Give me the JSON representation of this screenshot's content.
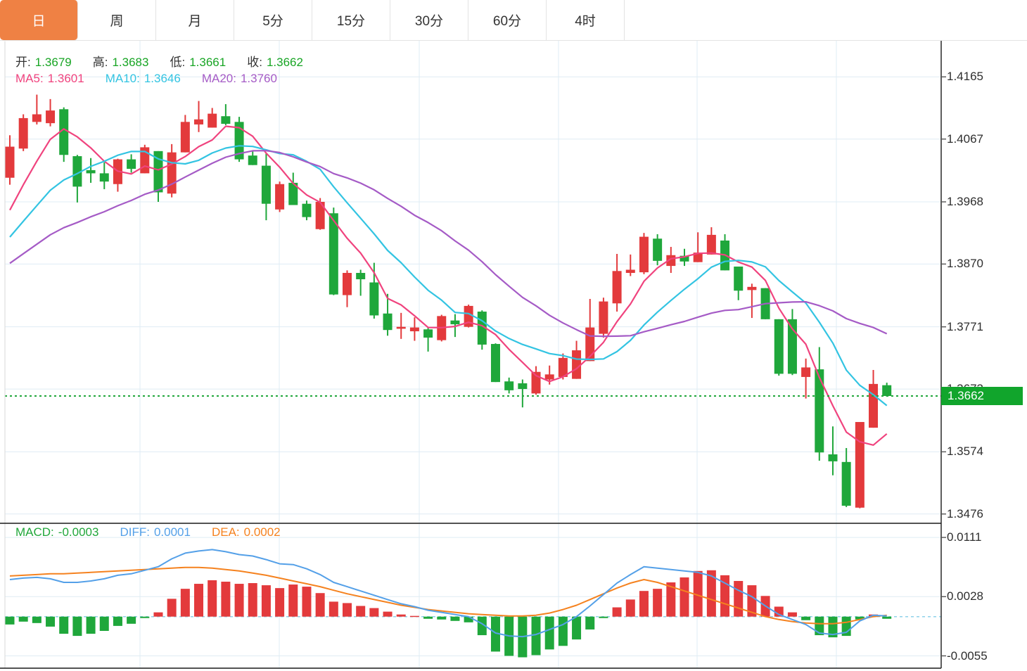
{
  "tabs": {
    "items": [
      {
        "label": "日",
        "name": "tab-day",
        "active": true
      },
      {
        "label": "周",
        "name": "tab-week",
        "active": false
      },
      {
        "label": "月",
        "name": "tab-month",
        "active": false
      },
      {
        "label": "5分",
        "name": "tab-5min",
        "active": false
      },
      {
        "label": "15分",
        "name": "tab-15min",
        "active": false
      },
      {
        "label": "30分",
        "name": "tab-30min",
        "active": false
      },
      {
        "label": "60分",
        "name": "tab-60min",
        "active": false
      },
      {
        "label": "4时",
        "name": "tab-4hour",
        "active": false
      }
    ],
    "active_color": "#ef8144"
  },
  "price_panel": {
    "ohlc_readout": [
      {
        "label": "开:",
        "value": "1.3679",
        "label_color": "#333333",
        "value_color": "#18a524"
      },
      {
        "label": "高:",
        "value": "1.3683",
        "label_color": "#333333",
        "value_color": "#18a524"
      },
      {
        "label": "低:",
        "value": "1.3661",
        "label_color": "#333333",
        "value_color": "#18a524"
      },
      {
        "label": "收:",
        "value": "1.3662",
        "label_color": "#333333",
        "value_color": "#18a524"
      }
    ],
    "ma_readout": [
      {
        "label": "MA5:",
        "value": "1.3601",
        "label_color": "#f0437e",
        "value_color": "#f0437e"
      },
      {
        "label": "MA10:",
        "value": "1.3646",
        "label_color": "#33c4e2",
        "value_color": "#33c4e2"
      },
      {
        "label": "MA20:",
        "value": "1.3760",
        "label_color": "#a55bc6",
        "value_color": "#a55bc6"
      }
    ],
    "current_price": {
      "value": "1.3662",
      "badge_color": "#11a52c",
      "line_color": "#21a73b"
    }
  },
  "macd_panel": {
    "readout": [
      {
        "label": "MACD:",
        "value": "-0.0003",
        "label_color": "#21a73b",
        "value_color": "#21a73b"
      },
      {
        "label": "DIFF:",
        "value": "0.0001",
        "label_color": "#54a0e8",
        "value_color": "#54a0e8"
      },
      {
        "label": "DEA:",
        "value": "0.0002",
        "label_color": "#f5821f",
        "value_color": "#f5821f"
      }
    ]
  },
  "chart_data": {
    "type": "candlestick+macd",
    "title": "",
    "price_axis_ticks": [
      1.4165,
      1.4067,
      1.3968,
      1.387,
      1.3771,
      1.3673,
      1.3574,
      1.3476
    ],
    "price_axis_visible_range": [
      1.3461,
      1.4222
    ],
    "macd_axis_ticks": [
      0.0111,
      0.0028,
      -0.0055
    ],
    "macd_axis_visible_range": [
      -0.0072,
      0.0131
    ],
    "current_price": 1.3662,
    "grid": true,
    "legend_position": "top-left",
    "candles_ohlc": [
      [
        1.4006,
        1.4073,
        1.3995,
        1.4055
      ],
      [
        1.4052,
        1.4106,
        1.4048,
        1.41
      ],
      [
        1.4094,
        1.4137,
        1.409,
        1.4106
      ],
      [
        1.4092,
        1.413,
        1.4087,
        1.4112
      ],
      [
        1.4114,
        1.4117,
        1.4031,
        1.4042
      ],
      [
        1.404,
        1.4042,
        1.3967,
        1.3992
      ],
      [
        1.4018,
        1.4037,
        1.3998,
        1.4013
      ],
      [
        1.4013,
        1.403,
        1.3988,
        1.4
      ],
      [
        1.3996,
        1.4036,
        1.3984,
        1.4035
      ],
      [
        1.4035,
        1.4043,
        1.4014,
        1.402
      ],
      [
        1.4013,
        1.4058,
        1.4013,
        1.4054
      ],
      [
        1.4048,
        1.4048,
        1.3968,
        1.3983
      ],
      [
        1.3981,
        1.4059,
        1.3975,
        1.4046
      ],
      [
        1.4046,
        1.4105,
        1.4046,
        1.4094
      ],
      [
        1.409,
        1.4127,
        1.4078,
        1.4098
      ],
      [
        1.4085,
        1.4116,
        1.4085,
        1.4107
      ],
      [
        1.4103,
        1.4122,
        1.4089,
        1.4091
      ],
      [
        1.4094,
        1.4102,
        1.4031,
        1.4035
      ],
      [
        1.4041,
        1.4049,
        1.4026,
        1.4026
      ],
      [
        1.4025,
        1.4044,
        1.3939,
        1.3965
      ],
      [
        1.3956,
        1.4,
        1.3952,
        1.3996
      ],
      [
        1.3998,
        1.4014,
        1.3963,
        1.3963
      ],
      [
        1.3965,
        1.397,
        1.3939,
        1.3944
      ],
      [
        1.3925,
        1.3974,
        1.3924,
        1.3968
      ],
      [
        1.395,
        1.3959,
        1.3821,
        1.3822
      ],
      [
        1.3821,
        1.386,
        1.3802,
        1.3856
      ],
      [
        1.3856,
        1.3861,
        1.382,
        1.3846
      ],
      [
        1.3841,
        1.3872,
        1.3784,
        1.3789
      ],
      [
        1.3792,
        1.3823,
        1.3757,
        1.3766
      ],
      [
        1.3768,
        1.3793,
        1.3752,
        1.3771
      ],
      [
        1.3764,
        1.3786,
        1.3749,
        1.377
      ],
      [
        1.3767,
        1.377,
        1.3732,
        1.3754
      ],
      [
        1.375,
        1.379,
        1.3748,
        1.3788
      ],
      [
        1.3781,
        1.3791,
        1.3755,
        1.3775
      ],
      [
        1.3771,
        1.3806,
        1.377,
        1.3804
      ],
      [
        1.3795,
        1.3797,
        1.3735,
        1.3743
      ],
      [
        1.3744,
        1.3745,
        1.3684,
        1.3684
      ],
      [
        1.3685,
        1.3691,
        1.3666,
        1.3671
      ],
      [
        1.3682,
        1.3688,
        1.3644,
        1.3673
      ],
      [
        1.3666,
        1.3709,
        1.3664,
        1.37
      ],
      [
        1.3688,
        1.371,
        1.368,
        1.3696
      ],
      [
        1.3692,
        1.3729,
        1.3688,
        1.3722
      ],
      [
        1.3689,
        1.3749,
        1.3689,
        1.3734
      ],
      [
        1.3717,
        1.3815,
        1.3717,
        1.377
      ],
      [
        1.376,
        1.3817,
        1.3754,
        1.3811
      ],
      [
        1.3808,
        1.3886,
        1.3795,
        1.3859
      ],
      [
        1.3856,
        1.3885,
        1.3851,
        1.3861
      ],
      [
        1.3857,
        1.3919,
        1.3854,
        1.3913
      ],
      [
        1.391,
        1.3917,
        1.3868,
        1.3875
      ],
      [
        1.3867,
        1.3897,
        1.3856,
        1.3884
      ],
      [
        1.3883,
        1.3894,
        1.3867,
        1.3874
      ],
      [
        1.3873,
        1.392,
        1.3873,
        1.3888
      ],
      [
        1.3885,
        1.3928,
        1.3885,
        1.3916
      ],
      [
        1.3907,
        1.3917,
        1.386,
        1.386
      ],
      [
        1.3866,
        1.3866,
        1.3813,
        1.3828
      ],
      [
        1.3829,
        1.3839,
        1.3785,
        1.3834
      ],
      [
        1.3832,
        1.3832,
        1.3783,
        1.3783
      ],
      [
        1.3783,
        1.3783,
        1.3694,
        1.3697
      ],
      [
        1.3783,
        1.3799,
        1.3695,
        1.3697
      ],
      [
        1.3692,
        1.3721,
        1.3658,
        1.3707
      ],
      [
        1.3704,
        1.3739,
        1.356,
        1.3573
      ],
      [
        1.357,
        1.3614,
        1.3537,
        1.3559
      ],
      [
        1.3558,
        1.358,
        1.3487,
        1.3489
      ],
      [
        1.3486,
        1.3621,
        1.3485,
        1.3621
      ],
      [
        1.3612,
        1.3703,
        1.3612,
        1.3681
      ],
      [
        1.3679,
        1.3683,
        1.3661,
        1.3662
      ]
    ],
    "ma_periods": [
      5,
      10,
      20
    ],
    "macd": {
      "histogram": [
        -0.0011,
        -0.0007,
        -0.0009,
        -0.0014,
        -0.0024,
        -0.0027,
        -0.0024,
        -0.002,
        -0.0013,
        -0.001,
        -0.0002,
        0.0006,
        0.0025,
        0.0039,
        0.0046,
        0.0051,
        0.0049,
        0.0046,
        0.0047,
        0.0044,
        0.004,
        0.0045,
        0.0042,
        0.0033,
        0.0021,
        0.0019,
        0.0015,
        0.0012,
        0.0007,
        0.0003,
        0.0001,
        -0.0003,
        -0.0004,
        -0.0006,
        -0.0008,
        -0.0026,
        -0.0049,
        -0.0055,
        -0.0057,
        -0.0054,
        -0.0046,
        -0.0041,
        -0.0032,
        -0.0018,
        -0.0002,
        0.0013,
        0.0024,
        0.0036,
        0.0039,
        0.0048,
        0.0055,
        0.0064,
        0.0065,
        0.0058,
        0.005,
        0.0044,
        0.0029,
        0.0014,
        0.0006,
        -0.0005,
        -0.0026,
        -0.0029,
        -0.0027,
        -0.0004,
        0.0003,
        -0.0003
      ],
      "diff": [
        0.0052,
        0.0054,
        0.0055,
        0.0053,
        0.0048,
        0.0048,
        0.005,
        0.0053,
        0.0058,
        0.006,
        0.0065,
        0.007,
        0.0081,
        0.0089,
        0.0092,
        0.0094,
        0.0091,
        0.0087,
        0.0085,
        0.008,
        0.0074,
        0.0073,
        0.0067,
        0.0059,
        0.0048,
        0.0042,
        0.0036,
        0.003,
        0.0024,
        0.0018,
        0.0014,
        0.0009,
        0.0006,
        0.0003,
        0.0,
        -0.001,
        -0.0023,
        -0.0027,
        -0.0028,
        -0.0025,
        -0.0018,
        -0.0011,
        0.0,
        0.0015,
        0.0031,
        0.0047,
        0.0059,
        0.007,
        0.0068,
        0.0066,
        0.0064,
        0.0062,
        0.0057,
        0.0047,
        0.0037,
        0.0028,
        0.0015,
        0.0003,
        -0.0004,
        -0.0011,
        -0.0023,
        -0.0025,
        -0.0022,
        -0.0006,
        0.0002,
        0.0001
      ],
      "dea": [
        0.0057,
        0.0058,
        0.0059,
        0.006,
        0.006,
        0.0061,
        0.0062,
        0.0063,
        0.0064,
        0.0065,
        0.0066,
        0.0067,
        0.0068,
        0.0069,
        0.0069,
        0.0068,
        0.0066,
        0.0064,
        0.0061,
        0.0058,
        0.0054,
        0.005,
        0.0046,
        0.0042,
        0.0037,
        0.0032,
        0.0028,
        0.0024,
        0.002,
        0.0016,
        0.0013,
        0.001,
        0.0008,
        0.0006,
        0.0004,
        0.0003,
        0.0002,
        0.0001,
        0.0001,
        0.0002,
        0.0005,
        0.001,
        0.0016,
        0.0024,
        0.0032,
        0.004,
        0.0047,
        0.0052,
        0.0048,
        0.0042,
        0.0036,
        0.003,
        0.0024,
        0.0018,
        0.0012,
        0.0006,
        0.0,
        -0.0004,
        -0.0007,
        -0.0009,
        -0.001,
        -0.001,
        -0.0008,
        -0.0004,
        0.0,
        0.0002
      ]
    },
    "colors": {
      "up_candle": "#e33a3c",
      "down_candle": "#1fa73b",
      "ma5": "#f0437e",
      "ma10": "#33c4e2",
      "ma20": "#a55bc6",
      "diff_line": "#54a0e8",
      "dea_line": "#f5821f",
      "hist_positive": "#e33a3c",
      "hist_negative": "#1fa73b",
      "grid": "#dfecf4",
      "panel_border": "#1a1a1a",
      "zero_dash": "#8fd2ea",
      "axis_text": "#2e2e2e"
    }
  }
}
